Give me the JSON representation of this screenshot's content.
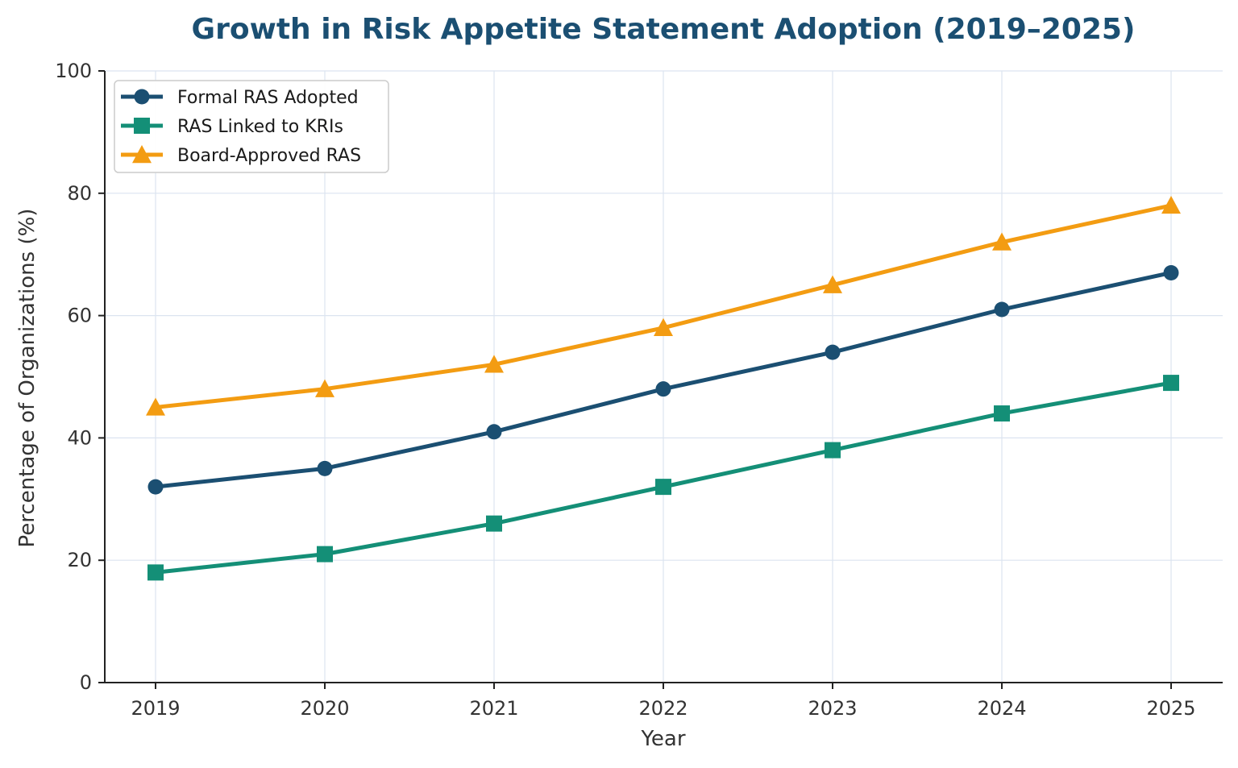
{
  "chart_data": {
    "type": "line",
    "title": "Growth in Risk Appetite Statement Adoption (2019–2025)",
    "xlabel": "Year",
    "ylabel": "Percentage of Organizations (%)",
    "x": [
      "2019",
      "2020",
      "2021",
      "2022",
      "2023",
      "2024",
      "2025"
    ],
    "ylim": [
      0,
      100
    ],
    "yticks": [
      0,
      20,
      40,
      60,
      80,
      100
    ],
    "grid": true,
    "legend_position": "top-left",
    "series": [
      {
        "name": "Formal RAS Adopted",
        "values": [
          32,
          35,
          41,
          48,
          54,
          61,
          67
        ],
        "color": "#1b4f72",
        "marker": "circle"
      },
      {
        "name": "RAS Linked to KRIs",
        "values": [
          18,
          21,
          26,
          32,
          38,
          44,
          49
        ],
        "color": "#148f77",
        "marker": "square"
      },
      {
        "name": "Board-Approved RAS",
        "values": [
          45,
          48,
          52,
          58,
          65,
          72,
          78
        ],
        "color": "#f39c12",
        "marker": "triangle"
      }
    ]
  },
  "colors": {
    "title": "#1b4f72",
    "axis": "#222222",
    "grid": "#dce4f0"
  }
}
